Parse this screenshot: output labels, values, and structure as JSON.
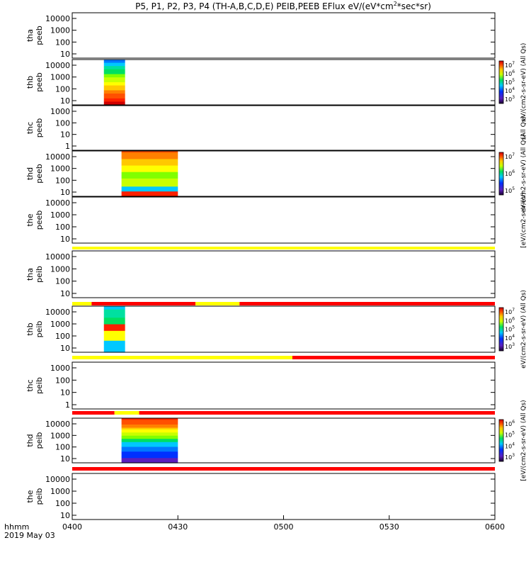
{
  "chart_data": {
    "type": "heatmap",
    "title": "P5, P1, P2, P3, P4 (TH-A,B,C,D,E) PEIB,PEEB EFlux eV/(eV*cm",
    "title_sup": "2",
    "title_tail": "*sec*sr)",
    "x_axis": {
      "ticks": [
        "0400",
        "0430",
        "0500",
        "0530",
        "0600"
      ],
      "corner_label": "hhmm",
      "date_label": "2019 May 03",
      "range_minutes": [
        0,
        120
      ]
    },
    "panels": [
      {
        "id": "tha_peeb",
        "probe": "tha",
        "product": "peeb",
        "yticks": [
          "10000",
          "1000",
          "100",
          "10"
        ],
        "log": true,
        "data": []
      },
      {
        "id": "thb_peeb",
        "probe": "thb",
        "product": "peeb",
        "yticks": [
          "10000",
          "1000",
          "100",
          "10"
        ],
        "log": true,
        "data": [
          {
            "start_min": 9,
            "end_min": 15,
            "profile": "thb_peeb"
          }
        ],
        "colorbar": {
          "ticks": [
            "10",
            "10",
            "10",
            "10",
            "10"
          ],
          "exps": [
            "7",
            "6",
            "5",
            "4",
            "3"
          ],
          "label": "eV/(cm2-s-sr-eV) (All Qs)"
        }
      },
      {
        "id": "thc_peeb",
        "probe": "thc",
        "product": "peeb",
        "yticks": [
          "1000",
          "100",
          "10",
          "1"
        ],
        "log": true,
        "data": [],
        "side_label": "(All Qs)"
      },
      {
        "id": "thd_peeb",
        "probe": "thd",
        "product": "peeb",
        "yticks": [
          "10000",
          "1000",
          "100",
          "10"
        ],
        "log": true,
        "data": [
          {
            "start_min": 14,
            "end_min": 30,
            "profile": "thd_peeb"
          }
        ],
        "colorbar": {
          "ticks": [
            "10",
            "10",
            "10"
          ],
          "exps": [
            "7",
            "6",
            "5"
          ],
          "label": "eV/(cm2-s-sr-eV) (All Qs)"
        }
      },
      {
        "id": "the_peeb",
        "probe": "the",
        "product": "peeb",
        "yticks": [
          "10000",
          "1000",
          "100",
          "10"
        ],
        "log": true,
        "data": [],
        "side_label": "[eV/(cm2-s-sr-eV)"
      },
      {
        "id": "tha_peib",
        "probe": "tha",
        "product": "peib",
        "yticks": [
          "10000",
          "1000",
          "100",
          "10"
        ],
        "log": true,
        "data": []
      },
      {
        "id": "thb_peib",
        "probe": "thb",
        "product": "peib",
        "yticks": [
          "10000",
          "1000",
          "100",
          "10"
        ],
        "log": true,
        "data": [
          {
            "start_min": 9,
            "end_min": 15,
            "profile": "thb_peib"
          }
        ],
        "colorbar": {
          "ticks": [
            "10",
            "10",
            "10",
            "10",
            "10"
          ],
          "exps": [
            "7",
            "6",
            "5",
            "4",
            "3"
          ],
          "label": "eV/(cm2-s-sr-eV) (All Qs)"
        }
      },
      {
        "id": "thc_peib",
        "probe": "thc",
        "product": "peib",
        "yticks": [
          "1000",
          "100",
          "10",
          "1"
        ],
        "log": true,
        "data": []
      },
      {
        "id": "thd_peib",
        "probe": "thd",
        "product": "peib",
        "yticks": [
          "10000",
          "1000",
          "100",
          "10"
        ],
        "log": true,
        "data": [
          {
            "start_min": 14,
            "end_min": 30,
            "profile": "thd_peib"
          }
        ],
        "colorbar": {
          "ticks": [
            "10",
            "10",
            "10",
            "10"
          ],
          "exps": [
            "6",
            "5",
            "4",
            "3"
          ],
          "label": "[eV/(cm2-s-sr-eV) (All Qs)"
        }
      },
      {
        "id": "the_peib",
        "probe": "the",
        "product": "peib",
        "yticks": [
          "10000",
          "1000",
          "100",
          "10"
        ],
        "log": true,
        "data": []
      }
    ],
    "mode_bars": [
      {
        "after_panel": "the_peeb",
        "segments": [
          {
            "start_min": 0,
            "end_min": 120,
            "mode": "yellow"
          }
        ]
      },
      {
        "after_panel": "tha_peib",
        "segments": [
          {
            "start_min": 0,
            "end_min": 5.5,
            "mode": "yellow"
          },
          {
            "start_min": 5.5,
            "end_min": 35,
            "mode": "red"
          },
          {
            "start_min": 35,
            "end_min": 47.5,
            "mode": "yellow"
          },
          {
            "start_min": 47.5,
            "end_min": 120,
            "mode": "red"
          }
        ]
      },
      {
        "after_panel": "thb_peib",
        "segments": [
          {
            "start_min": 0,
            "end_min": 62.5,
            "mode": "yellow"
          },
          {
            "start_min": 62.5,
            "end_min": 120,
            "mode": "red"
          }
        ]
      },
      {
        "after_panel": "thc_peib",
        "segments": [
          {
            "start_min": 0,
            "end_min": 12,
            "mode": "red"
          },
          {
            "start_min": 12,
            "end_min": 19,
            "mode": "yellow"
          },
          {
            "start_min": 19,
            "end_min": 120,
            "mode": "red"
          }
        ]
      },
      {
        "after_panel": "thd_peib",
        "segments": [
          {
            "start_min": 0,
            "end_min": 120,
            "mode": "red"
          }
        ]
      }
    ],
    "colors": {
      "yellow": "#ffff00",
      "red": "#ff0000",
      "frame": "#000000"
    }
  }
}
